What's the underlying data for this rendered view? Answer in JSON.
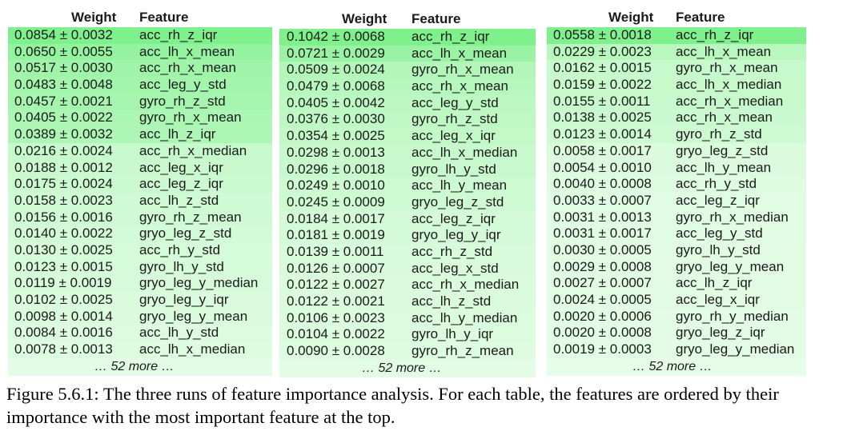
{
  "tables": [
    {
      "header": {
        "weight": "Weight",
        "feature": "Feature"
      },
      "rows": [
        {
          "weight": "0.0854 ± 0.0032",
          "feature": "acc_rh_z_iqr",
          "color": "#7ef08c"
        },
        {
          "weight": "0.0650 ± 0.0055",
          "feature": "acc_lh_x_mean",
          "color": "#94f39f"
        },
        {
          "weight": "0.0517 ± 0.0030",
          "feature": "acc_rh_x_mean",
          "color": "#9ff4a9"
        },
        {
          "weight": "0.0483 ± 0.0048",
          "feature": "acc_leg_y_std",
          "color": "#a3f5ac"
        },
        {
          "weight": "0.0457 ± 0.0021",
          "feature": "gyro_rh_z_std",
          "color": "#a6f5af"
        },
        {
          "weight": "0.0405 ± 0.0022",
          "feature": "gyro_rh_x_mean",
          "color": "#abf6b3"
        },
        {
          "weight": "0.0389 ± 0.0032",
          "feature": "acc_lh_z_iqr",
          "color": "#adf6b5"
        },
        {
          "weight": "0.0216 ± 0.0024",
          "feature": "acc_rh_x_median",
          "color": "#c6f9cb"
        },
        {
          "weight": "0.0188 ± 0.0012",
          "feature": "acc_leg_x_iqr",
          "color": "#caf9ce"
        },
        {
          "weight": "0.0175 ± 0.0024",
          "feature": "acc_leg_z_iqr",
          "color": "#ccfad0"
        },
        {
          "weight": "0.0158 ± 0.0023",
          "feature": "acc_lh_z_std",
          "color": "#cffad3"
        },
        {
          "weight": "0.0156 ± 0.0016",
          "feature": "gyro_rh_z_mean",
          "color": "#d0fad3"
        },
        {
          "weight": "0.0140 ± 0.0022",
          "feature": "gryo_leg_z_std",
          "color": "#d3fad6"
        },
        {
          "weight": "0.0130 ± 0.0025",
          "feature": "acc_rh_y_std",
          "color": "#d5fbd8"
        },
        {
          "weight": "0.0123 ± 0.0015",
          "feature": "gyro_lh_y_std",
          "color": "#d6fbd9"
        },
        {
          "weight": "0.0119 ± 0.0019",
          "feature": "gryo_leg_y_median",
          "color": "#d7fbda"
        },
        {
          "weight": "0.0102 ± 0.0025",
          "feature": "gryo_leg_y_iqr",
          "color": "#dafbdc"
        },
        {
          "weight": "0.0098 ± 0.0014",
          "feature": "gryo_leg_y_mean",
          "color": "#dbfbdd"
        },
        {
          "weight": "0.0084 ± 0.0016",
          "feature": "acc_lh_y_std",
          "color": "#ddfcdf"
        },
        {
          "weight": "0.0078 ± 0.0013",
          "feature": "acc_lh_x_median",
          "color": "#defce0"
        }
      ],
      "more": "… 52 more …",
      "more_color": "#e3fce5"
    },
    {
      "header": {
        "weight": "Weight",
        "feature": "Feature"
      },
      "rows": [
        {
          "weight": "0.1042 ± 0.0068",
          "feature": "acc_rh_z_iqr",
          "color": "#7ef08c"
        },
        {
          "weight": "0.0721 ± 0.0029",
          "feature": "acc_lh_x_mean",
          "color": "#9af3a4"
        },
        {
          "weight": "0.0509 ± 0.0024",
          "feature": "gyro_rh_x_mean",
          "color": "#b2f7b9"
        },
        {
          "weight": "0.0479 ± 0.0068",
          "feature": "acc_rh_x_mean",
          "color": "#b5f7bc"
        },
        {
          "weight": "0.0405 ± 0.0042",
          "feature": "acc_leg_y_std",
          "color": "#bcf8c2"
        },
        {
          "weight": "0.0376 ± 0.0030",
          "feature": "gyro_rh_z_std",
          "color": "#bff8c5"
        },
        {
          "weight": "0.0354 ± 0.0025",
          "feature": "acc_leg_x_iqr",
          "color": "#c2f9c7"
        },
        {
          "weight": "0.0298 ± 0.0013",
          "feature": "acc_lh_x_median",
          "color": "#c8f9cc"
        },
        {
          "weight": "0.0296 ± 0.0018",
          "feature": "gyro_lh_y_std",
          "color": "#c8f9cc"
        },
        {
          "weight": "0.0249 ± 0.0010",
          "feature": "acc_lh_y_mean",
          "color": "#cdfad1"
        },
        {
          "weight": "0.0245 ± 0.0009",
          "feature": "gryo_leg_z_std",
          "color": "#cdfad1"
        },
        {
          "weight": "0.0184 ± 0.0017",
          "feature": "acc_leg_z_iqr",
          "color": "#d4fad7"
        },
        {
          "weight": "0.0181 ± 0.0019",
          "feature": "gryo_leg_y_iqr",
          "color": "#d4fad7"
        },
        {
          "weight": "0.0139 ± 0.0011",
          "feature": "acc_rh_z_std",
          "color": "#d8fbdb"
        },
        {
          "weight": "0.0126 ± 0.0007",
          "feature": "acc_leg_x_std",
          "color": "#d9fbdc"
        },
        {
          "weight": "0.0122 ± 0.0027",
          "feature": "acc_rh_x_median",
          "color": "#dafbdc"
        },
        {
          "weight": "0.0122 ± 0.0021",
          "feature": "acc_lh_z_std",
          "color": "#dafbdc"
        },
        {
          "weight": "0.0106 ± 0.0023",
          "feature": "acc_lh_y_median",
          "color": "#dcfcde"
        },
        {
          "weight": "0.0104 ± 0.0022",
          "feature": "gyro_lh_y_iqr",
          "color": "#dcfcde"
        },
        {
          "weight": "0.0090 ± 0.0028",
          "feature": "gyro_rh_z_mean",
          "color": "#defce0"
        }
      ],
      "more": "… 52 more …",
      "more_color": "#e3fce5"
    },
    {
      "header": {
        "weight": "Weight",
        "feature": "Feature"
      },
      "rows": [
        {
          "weight": "0.0558 ± 0.0018",
          "feature": "acc_rh_z_iqr",
          "color": "#7ef08c"
        },
        {
          "weight": "0.0229 ± 0.0023",
          "feature": "acc_lh_x_mean",
          "color": "#b8f7be"
        },
        {
          "weight": "0.0162 ± 0.0015",
          "feature": "gyro_rh_x_mean",
          "color": "#c6f9cb"
        },
        {
          "weight": "0.0159 ± 0.0022",
          "feature": "acc_lh_x_median",
          "color": "#c7f9cb"
        },
        {
          "weight": "0.0155 ± 0.0011",
          "feature": "acc_rh_x_median",
          "color": "#c7f9cc"
        },
        {
          "weight": "0.0138 ± 0.0025",
          "feature": "acc_rh_x_mean",
          "color": "#cbf9cf"
        },
        {
          "weight": "0.0123 ± 0.0014",
          "feature": "gyro_rh_z_std",
          "color": "#cefad2"
        },
        {
          "weight": "0.0058 ± 0.0017",
          "feature": "gryo_leg_z_std",
          "color": "#dbfbdd"
        },
        {
          "weight": "0.0054 ± 0.0010",
          "feature": "acc_lh_y_mean",
          "color": "#dcfbde"
        },
        {
          "weight": "0.0040 ± 0.0008",
          "feature": "acc_rh_y_std",
          "color": "#defce0"
        },
        {
          "weight": "0.0033 ± 0.0007",
          "feature": "acc_leg_z_iqr",
          "color": "#e0fce2"
        },
        {
          "weight": "0.0031 ± 0.0013",
          "feature": "gyro_rh_x_median",
          "color": "#e0fce2"
        },
        {
          "weight": "0.0031 ± 0.0017",
          "feature": "acc_leg_y_std",
          "color": "#e0fce2"
        },
        {
          "weight": "0.0030 ± 0.0005",
          "feature": "gyro_lh_y_std",
          "color": "#e1fce3"
        },
        {
          "weight": "0.0029 ± 0.0008",
          "feature": "gryo_leg_y_mean",
          "color": "#e1fce3"
        },
        {
          "weight": "0.0027 ± 0.0007",
          "feature": "acc_lh_z_iqr",
          "color": "#e1fce3"
        },
        {
          "weight": "0.0024 ± 0.0005",
          "feature": "acc_leg_x_iqr",
          "color": "#e2fce4"
        },
        {
          "weight": "0.0020 ± 0.0006",
          "feature": "gyro_rh_y_median",
          "color": "#e3fce5"
        },
        {
          "weight": "0.0020 ± 0.0008",
          "feature": "gryo_leg_z_iqr",
          "color": "#e3fce5"
        },
        {
          "weight": "0.0019 ± 0.0003",
          "feature": "gryo_leg_y_median",
          "color": "#e3fce5"
        }
      ],
      "more": "… 52 more …",
      "more_color": "#e6fde8"
    }
  ],
  "caption": "Figure 5.6.1: The three runs of feature importance analysis. For each table, the features are ordered by their importance with the most important feature at the top."
}
